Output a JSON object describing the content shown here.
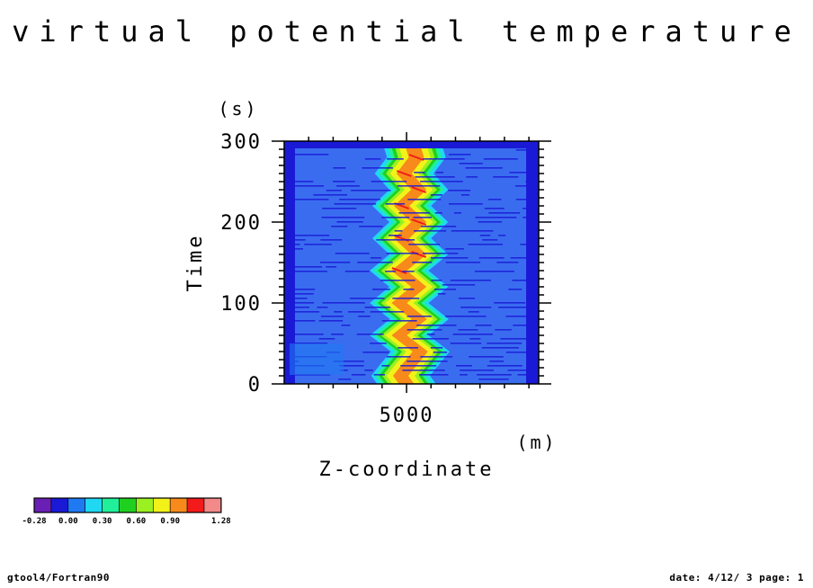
{
  "footer": {
    "left": "gtool4/Fortran90",
    "right": "date: 4/12/ 3 page: 1"
  },
  "chart_data": {
    "type": "heatmap",
    "title": "virtual potential temperature",
    "xlabel": "Z-coordinate",
    "xunit": "(m)",
    "ylabel": "Time",
    "yunit": "(s)",
    "xlim": [
      2500,
      7700
    ],
    "ylim": [
      0,
      300
    ],
    "xticks": [
      5000
    ],
    "yticks": [
      0,
      100,
      200,
      300
    ],
    "levels": [
      -0.28,
      -0.13,
      0.0,
      0.15,
      0.3,
      0.45,
      0.6,
      0.75,
      0.9,
      1.05,
      1.2,
      1.28
    ],
    "colorbar_labels": [
      "-0.28",
      "0.00",
      "0.30",
      "0.60",
      "0.90",
      "1.28"
    ],
    "colors": [
      "#6a1fb4",
      "#1a1ad6",
      "#1f7af2",
      "#20d8f2",
      "#20f09a",
      "#20d020",
      "#9af020",
      "#f2f21a",
      "#f78a1a",
      "#f21a1a",
      "#f28a8a"
    ],
    "background_color": "#3a6cf0",
    "plume": {
      "half_width_m": 600,
      "center_path": [
        {
          "t": 0,
          "z": 5000
        },
        {
          "t": 10,
          "z": 4880
        },
        {
          "t": 20,
          "z": 5010
        },
        {
          "t": 40,
          "z": 5280
        },
        {
          "t": 60,
          "z": 4850
        },
        {
          "t": 80,
          "z": 5260
        },
        {
          "t": 100,
          "z": 4850
        },
        {
          "t": 120,
          "z": 5250
        },
        {
          "t": 140,
          "z": 4850
        },
        {
          "t": 160,
          "z": 5250
        },
        {
          "t": 180,
          "z": 4900
        },
        {
          "t": 200,
          "z": 5250
        },
        {
          "t": 220,
          "z": 4900
        },
        {
          "t": 240,
          "z": 5250
        },
        {
          "t": 260,
          "z": 4950
        },
        {
          "t": 280,
          "z": 5200
        },
        {
          "t": 300,
          "z": 5100
        }
      ]
    }
  }
}
